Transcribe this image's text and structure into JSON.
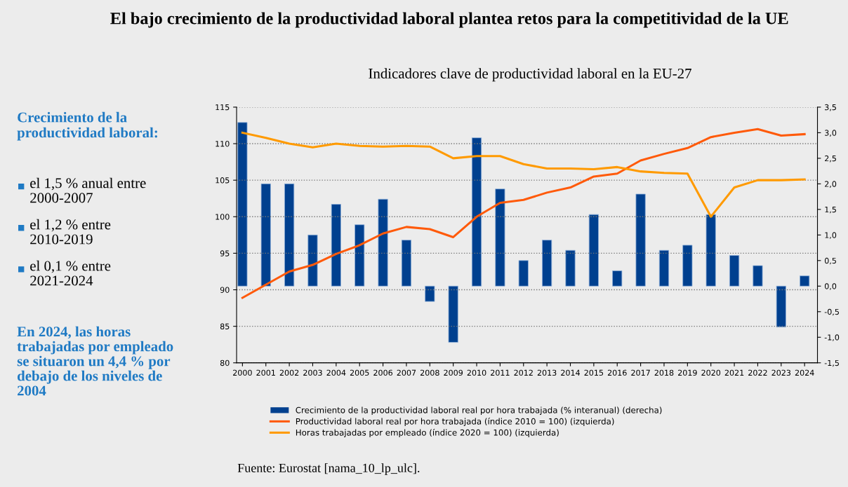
{
  "chart_data": {
    "type": "bar",
    "title": "El bajo crecimiento de la productividad laboral plantea retos para la competitividad de la UE",
    "subtitle": "Indicadores clave de productividad laboral en la EU-27",
    "categories": [
      "2000",
      "2001",
      "2002",
      "2003",
      "2004",
      "2005",
      "2006",
      "2007",
      "2008",
      "2009",
      "2010",
      "2011",
      "2012",
      "2013",
      "2014",
      "2015",
      "2016",
      "2017",
      "2018",
      "2019",
      "2020",
      "2021",
      "2022",
      "2023",
      "2024"
    ],
    "series": [
      {
        "name": "Crecimiento de la productividad laboral real por hora trabajada (% interanual) (derecha)",
        "axis": "y2",
        "color": "#00408f",
        "values": [
          3.2,
          2.0,
          2.0,
          1.0,
          1.6,
          1.2,
          1.7,
          0.9,
          -0.3,
          -1.1,
          2.9,
          1.9,
          0.5,
          0.9,
          0.7,
          1.4,
          0.3,
          1.8,
          0.7,
          0.8,
          1.4,
          0.6,
          0.4,
          -0.8,
          0.2
        ]
      },
      {
        "name": "Productividad laboral real por hora trabajada (índice 2010 = 100) (izquierda)",
        "type": "line",
        "color": "#ff5a0a",
        "values": [
          88.9,
          90.7,
          92.5,
          93.4,
          94.9,
          96.1,
          97.7,
          98.6,
          98.3,
          97.2,
          100.0,
          101.9,
          102.3,
          103.3,
          104.0,
          105.5,
          105.9,
          107.7,
          108.6,
          109.4,
          110.9,
          111.5,
          112.0,
          111.1,
          111.3
        ]
      },
      {
        "name": "Horas trabajadas por empleado (índice 2020 = 100) (izquierda)",
        "type": "line",
        "color": "#ff9a00",
        "values": [
          111.5,
          110.8,
          110.0,
          109.5,
          110.0,
          109.7,
          109.6,
          109.7,
          109.6,
          108.0,
          108.3,
          108.3,
          107.2,
          106.6,
          106.6,
          106.5,
          106.8,
          106.2,
          106.0,
          105.9,
          100.0,
          104.0,
          105.0,
          105.0,
          105.1
        ]
      }
    ],
    "ylim": [
      80,
      115
    ],
    "yticks": [
      80,
      85,
      90,
      95,
      100,
      105,
      110,
      115
    ],
    "y2lim": [
      -1.5,
      3.5
    ],
    "y2ticks": [
      {
        "value": -1.5,
        "label": "-1,5"
      },
      {
        "value": -1.0,
        "label": "-1,0"
      },
      {
        "value": -0.5,
        "label": "-0,5"
      },
      {
        "value": 0,
        "label": "0,0"
      },
      {
        "value": 0.5,
        "label": "0,5"
      },
      {
        "value": 1.0,
        "label": "1,0"
      },
      {
        "value": 1.5,
        "label": "1,5"
      },
      {
        "value": 2.0,
        "label": "2,0"
      },
      {
        "value": 2.5,
        "label": "2,5"
      },
      {
        "value": 3.0,
        "label": "3,0"
      },
      {
        "value": 3.5,
        "label": "3,5"
      }
    ],
    "grid": "y",
    "legend": "bottom",
    "marker": "none",
    "line_style": "solid",
    "annotations": [
      "Crecimiento de la productividad laboral:",
      "el 1,5 % anual entre 2000-2007",
      "el 1,2 % entre 2010-2019",
      "el 0,1 % entre 2021-2024",
      "En 2024, las horas trabajadas por empleado se situaron un 4,4 % por debajo de los niveles de 2004",
      "Fuente: Eurostat [nama_10_lp_ulc]."
    ]
  }
}
